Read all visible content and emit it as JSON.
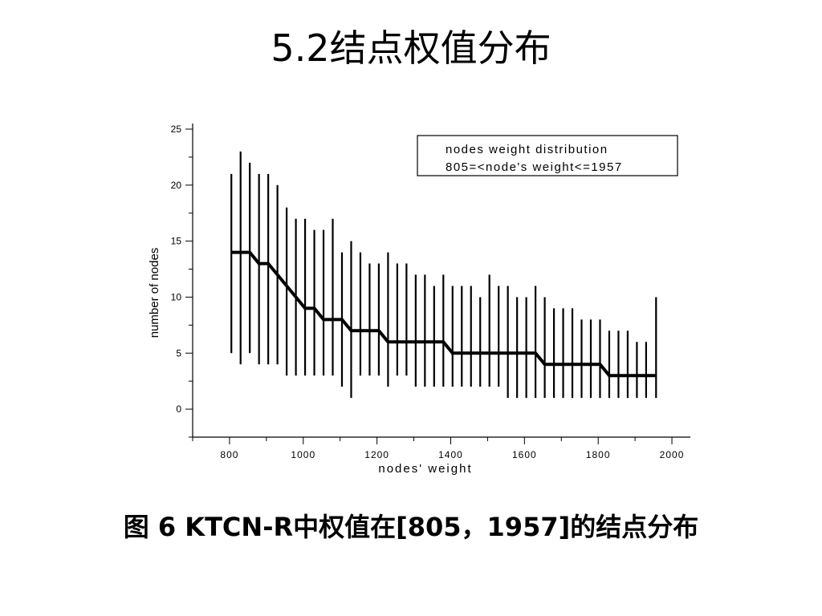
{
  "slide": {
    "title": "5.2结点权值分布",
    "caption": "图 6 KTCN-R中权值在[805，1957]的结点分布"
  },
  "chart_data": {
    "type": "line",
    "xlabel": "nodes' weight",
    "ylabel": "number of nodes",
    "xlim": [
      700,
      2050
    ],
    "ylim": [
      -2.5,
      25.5
    ],
    "xticks": [
      800,
      1000,
      1200,
      1400,
      1600,
      1800,
      2000
    ],
    "yticks": [
      0,
      5,
      10,
      15,
      20,
      25
    ],
    "grid": false,
    "legend": {
      "position": "top-right",
      "lines": [
        "nodes weight distribution",
        "805=<node's weight<=1957"
      ]
    },
    "series": [
      {
        "name": "nodes weight distribution",
        "x": [
          805,
          830,
          855,
          880,
          905,
          930,
          955,
          980,
          1005,
          1030,
          1055,
          1080,
          1105,
          1130,
          1155,
          1180,
          1205,
          1230,
          1255,
          1280,
          1305,
          1330,
          1355,
          1380,
          1405,
          1430,
          1455,
          1480,
          1505,
          1530,
          1555,
          1580,
          1605,
          1630,
          1655,
          1680,
          1705,
          1730,
          1755,
          1780,
          1805,
          1830,
          1855,
          1880,
          1905,
          1930,
          1957
        ],
        "y": [
          14,
          14,
          14,
          13,
          13,
          12,
          11,
          10,
          9,
          9,
          8,
          8,
          8,
          7,
          7,
          7,
          7,
          6,
          6,
          6,
          6,
          6,
          6,
          6,
          5,
          5,
          5,
          5,
          5,
          5,
          5,
          5,
          5,
          5,
          4,
          4,
          4,
          4,
          4,
          4,
          4,
          3,
          3,
          3,
          3,
          3,
          3
        ],
        "y_min": [
          5,
          4,
          5,
          4,
          4,
          4,
          3,
          3,
          3,
          3,
          3,
          3,
          2,
          1,
          3,
          3,
          3,
          2,
          3,
          3,
          2,
          2,
          2,
          2,
          2,
          2,
          2,
          2,
          2,
          2,
          1,
          1,
          1,
          1,
          1,
          1,
          1,
          1,
          1,
          1,
          1,
          1,
          1,
          1,
          1,
          1,
          1
        ],
        "y_max": [
          21,
          23,
          22,
          21,
          21,
          20,
          18,
          17,
          17,
          16,
          16,
          17,
          14,
          15,
          14,
          13,
          13,
          14,
          13,
          13,
          12,
          12,
          11,
          12,
          11,
          11,
          11,
          10,
          12,
          11,
          11,
          10,
          10,
          11,
          10,
          9,
          9,
          9,
          8,
          8,
          8,
          7,
          7,
          7,
          6,
          6,
          10
        ]
      }
    ]
  }
}
